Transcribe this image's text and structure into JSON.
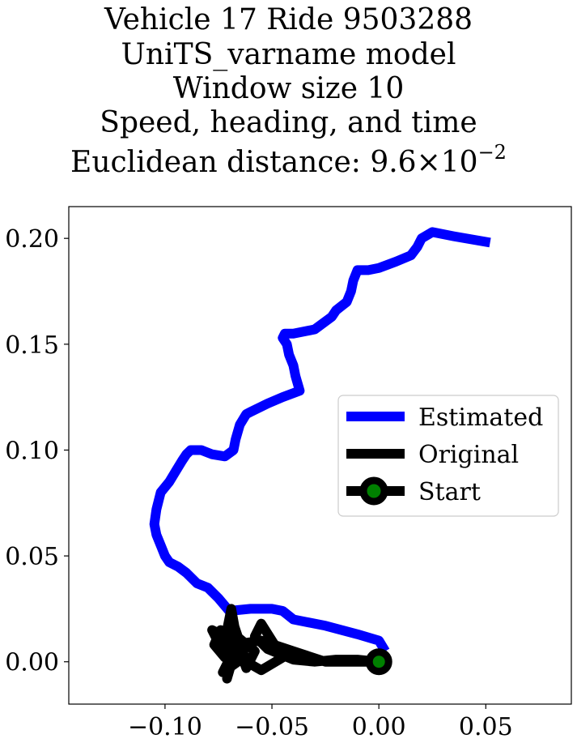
{
  "title": {
    "lines": [
      "Vehicle 17 Ride 9503288",
      "UniTS_varname model",
      "Window size 10",
      "Speed, heading, and time"
    ],
    "distance_prefix": "Euclidean distance: 9.6×10",
    "distance_exponent": "−2"
  },
  "chart_data": {
    "type": "line",
    "xlim": [
      -0.145,
      0.09
    ],
    "ylim": [
      -0.02,
      0.215
    ],
    "xticks": [
      -0.1,
      -0.05,
      0.0,
      0.05
    ],
    "xtick_labels": [
      "−0.10",
      "−0.05",
      "0.00",
      "0.05"
    ],
    "yticks": [
      0.0,
      0.05,
      0.1,
      0.15,
      0.2
    ],
    "ytick_labels": [
      "0.00",
      "0.05",
      "0.10",
      "0.15",
      "0.20"
    ],
    "grid": false,
    "legend_position": "center-right",
    "series": [
      {
        "name": "Estimated",
        "color": "#0000ff",
        "x": [
          0.003,
          0.0,
          -0.01,
          -0.025,
          -0.035,
          -0.04,
          -0.045,
          -0.05,
          -0.06,
          -0.07,
          -0.075,
          -0.08,
          -0.085,
          -0.09,
          -0.094,
          -0.098,
          -0.1,
          -0.102,
          -0.104,
          -0.105,
          -0.104,
          -0.102,
          -0.098,
          -0.095,
          -0.092,
          -0.09,
          -0.088,
          -0.083,
          -0.078,
          -0.072,
          -0.068,
          -0.067,
          -0.065,
          -0.062,
          -0.06,
          -0.052,
          -0.045,
          -0.037,
          -0.039,
          -0.04,
          -0.042,
          -0.043,
          -0.045,
          -0.044,
          -0.04,
          -0.03,
          -0.022,
          -0.02,
          -0.015,
          -0.013,
          -0.012,
          -0.01,
          -0.005,
          0.0,
          0.008,
          0.015,
          0.018,
          0.02,
          0.025,
          0.035,
          0.052
        ],
        "y": [
          0.005,
          0.01,
          0.013,
          0.017,
          0.019,
          0.02,
          0.024,
          0.025,
          0.025,
          0.024,
          0.03,
          0.035,
          0.037,
          0.042,
          0.045,
          0.047,
          0.05,
          0.055,
          0.06,
          0.065,
          0.072,
          0.08,
          0.085,
          0.09,
          0.095,
          0.098,
          0.1,
          0.1,
          0.098,
          0.097,
          0.1,
          0.105,
          0.112,
          0.117,
          0.118,
          0.122,
          0.125,
          0.128,
          0.135,
          0.14,
          0.145,
          0.15,
          0.153,
          0.155,
          0.155,
          0.157,
          0.163,
          0.166,
          0.17,
          0.175,
          0.18,
          0.185,
          0.185,
          0.186,
          0.189,
          0.192,
          0.196,
          0.2,
          0.203,
          0.201,
          0.198
        ]
      },
      {
        "name": "Original",
        "color": "#000000",
        "x": [
          0.0,
          -0.01,
          -0.025,
          -0.04,
          -0.055,
          -0.068,
          -0.074,
          -0.077,
          -0.072,
          -0.068,
          -0.073,
          -0.066,
          -0.07,
          -0.064,
          -0.058,
          -0.062,
          -0.066,
          -0.069,
          -0.073,
          -0.078,
          -0.072,
          -0.069,
          -0.071,
          -0.067,
          -0.068,
          -0.062,
          -0.055,
          -0.045,
          -0.05,
          -0.055,
          -0.058,
          -0.052,
          -0.04,
          -0.03,
          -0.02,
          -0.01,
          0.0
        ],
        "y": [
          0.0,
          0.0,
          0.0,
          0.005,
          0.01,
          0.008,
          0.015,
          0.008,
          0.002,
          0.005,
          -0.005,
          0.0,
          0.015,
          0.01,
          0.005,
          -0.003,
          0.008,
          0.025,
          0.005,
          0.015,
          0.012,
          0.0,
          -0.008,
          0.006,
          0.018,
          0.0,
          -0.004,
          0.002,
          0.01,
          0.018,
          0.012,
          0.006,
          0.001,
          0.0,
          0.001,
          0.001,
          0.0
        ]
      },
      {
        "name": "Start",
        "color": "#000000",
        "marker_color": "#008000",
        "x": [
          0.0
        ],
        "y": [
          0.0
        ]
      }
    ]
  }
}
